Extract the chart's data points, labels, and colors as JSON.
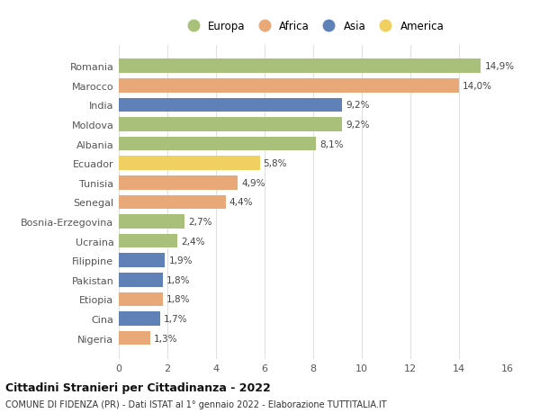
{
  "categories": [
    "Nigeria",
    "Cina",
    "Etiopia",
    "Pakistan",
    "Filippine",
    "Ucraina",
    "Bosnia-Erzegovina",
    "Senegal",
    "Tunisia",
    "Ecuador",
    "Albania",
    "Moldova",
    "India",
    "Marocco",
    "Romania"
  ],
  "values": [
    1.3,
    1.7,
    1.8,
    1.8,
    1.9,
    2.4,
    2.7,
    4.4,
    4.9,
    5.8,
    8.1,
    9.2,
    9.2,
    14.0,
    14.9
  ],
  "continents": [
    "Africa",
    "Asia",
    "Africa",
    "Asia",
    "Asia",
    "Europa",
    "Europa",
    "Africa",
    "Africa",
    "America",
    "Europa",
    "Europa",
    "Asia",
    "Africa",
    "Europa"
  ],
  "colors": {
    "Europa": "#a8c07a",
    "Africa": "#e8a878",
    "Asia": "#6080b8",
    "America": "#f0d060"
  },
  "legend_order": [
    "Europa",
    "Africa",
    "Asia",
    "America"
  ],
  "title": "Cittadini Stranieri per Cittadinanza - 2022",
  "subtitle": "COMUNE DI FIDENZA (PR) - Dati ISTAT al 1° gennaio 2022 - Elaborazione TUTTITALIA.IT",
  "xlim": [
    0,
    16
  ],
  "xticks": [
    0,
    2,
    4,
    6,
    8,
    10,
    12,
    14,
    16
  ],
  "background_color": "#ffffff",
  "grid_color": "#e0e0e0"
}
